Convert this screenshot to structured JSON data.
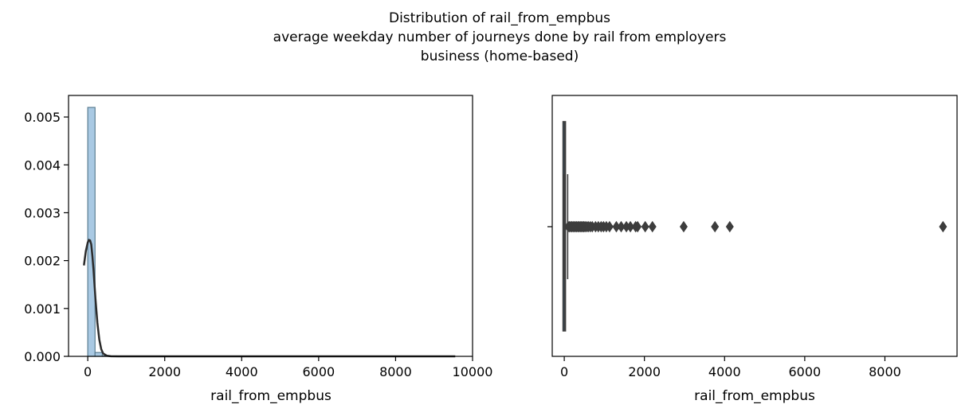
{
  "figure": {
    "title_lines": [
      "Distribution of rail_from_empbus",
      "average weekday number of journeys done by rail from employers",
      "business (home-based)"
    ]
  },
  "chart_data": [
    {
      "type": "histogram",
      "xlabel": "rail_from_empbus",
      "ylabel": "",
      "xlim": [
        -500,
        10000
      ],
      "ylim": [
        0,
        0.00545
      ],
      "xticks": [
        0,
        2000,
        4000,
        6000,
        8000,
        10000
      ],
      "xtick_labels": [
        "0",
        "2000",
        "4000",
        "6000",
        "8000",
        "10000"
      ],
      "yticks": [
        0,
        0.001,
        0.002,
        0.003,
        0.004,
        0.005
      ],
      "ytick_labels": [
        "0.000",
        "0.001",
        "0.002",
        "0.003",
        "0.004",
        "0.005"
      ],
      "bins": [
        {
          "x0": 0,
          "x1": 189,
          "density": 0.0052
        },
        {
          "x0": 189,
          "x1": 378,
          "density": 8e-05
        },
        {
          "x0": 378,
          "x1": 567,
          "density": 1.5e-05
        },
        {
          "x0": 567,
          "x1": 756,
          "density": 8e-06
        }
      ],
      "kde": {
        "x": [
          -100,
          -50,
          0,
          30,
          60,
          90,
          120,
          150,
          200,
          250,
          300,
          350,
          400,
          500,
          600,
          800,
          1000,
          2000,
          4000,
          6000,
          8000,
          9550
        ],
        "y": [
          0.0019,
          0.0022,
          0.00238,
          0.00243,
          0.00242,
          0.00234,
          0.0021,
          0.0018,
          0.0012,
          0.0007,
          0.00035,
          0.00015,
          6e-05,
          1.2e-05,
          3e-06,
          1e-06,
          0,
          0,
          0,
          0,
          0,
          0
        ]
      },
      "colors": {
        "bar_fill": "#a9c9e3",
        "bar_edge": "#5a7d92",
        "kde": "#2b2b2b"
      }
    },
    {
      "type": "boxplot",
      "xlabel": "rail_from_empbus",
      "xlim": [
        -300,
        9800
      ],
      "xticks": [
        0,
        2000,
        4000,
        6000,
        8000
      ],
      "xtick_labels": [
        "0",
        "2000",
        "4000",
        "6000",
        "8000"
      ],
      "box": {
        "q1": 0,
        "median": 10,
        "q3": 35,
        "whisker_low": 0,
        "whisker_high": 85
      },
      "outliers": [
        100,
        130,
        160,
        190,
        220,
        250,
        280,
        310,
        340,
        370,
        400,
        430,
        460,
        490,
        520,
        560,
        600,
        650,
        700,
        780,
        850,
        920,
        980,
        1050,
        1130,
        1300,
        1420,
        1550,
        1650,
        1780,
        1830,
        2020,
        2200,
        2980,
        3760,
        4130,
        9450
      ],
      "colors": {
        "box": "#3d3d3d",
        "outlier": "#3d3d3d"
      }
    }
  ]
}
